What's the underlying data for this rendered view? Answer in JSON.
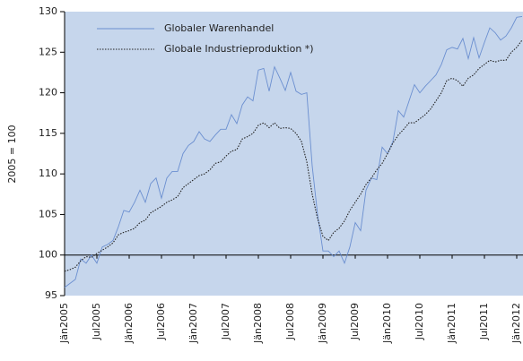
{
  "chart_data": {
    "type": "line",
    "y_label": "2005 = 100",
    "categories": [
      "Jän2005",
      null,
      null,
      null,
      null,
      null,
      "Jul2005",
      null,
      null,
      null,
      null,
      null,
      "Jän2006",
      null,
      null,
      null,
      null,
      null,
      "Jul2006",
      null,
      null,
      null,
      null,
      null,
      "Jän2007",
      null,
      null,
      null,
      null,
      null,
      "Jul2007",
      null,
      null,
      null,
      null,
      null,
      "Jän2008",
      null,
      null,
      null,
      null,
      null,
      "Jul2008",
      null,
      null,
      null,
      null,
      null,
      "Jän2009",
      null,
      null,
      null,
      null,
      null,
      "Jul2009",
      null,
      null,
      null,
      null,
      null,
      "Jän2010",
      null,
      null,
      null,
      null,
      null,
      "Jul2010",
      null,
      null,
      null,
      null,
      null,
      "Jän2011",
      null,
      null,
      null,
      null,
      null,
      "Jul2011",
      null,
      null,
      null,
      null,
      null,
      "Jän2012",
      null
    ],
    "series": [
      {
        "name": "Globaler Warenhandel",
        "color": "#6b8fd0",
        "style": "solid",
        "values": [
          96,
          96.5,
          97,
          99.5,
          99,
          100,
          99,
          101,
          101.3,
          101.8,
          103.5,
          105.5,
          105.3,
          106.5,
          108,
          106.5,
          108.8,
          109.5,
          107,
          109.5,
          110.3,
          110.3,
          112.5,
          113.5,
          114,
          115.2,
          114.3,
          114,
          114.8,
          115.5,
          115.5,
          117.3,
          116.2,
          118.5,
          119.5,
          119,
          122.8,
          123,
          120.2,
          123.2,
          121.8,
          120.3,
          122.5,
          120.2,
          119.8,
          120,
          111,
          105,
          100.5,
          100.5,
          99.8,
          100.5,
          99,
          101,
          104,
          103,
          108,
          109.5,
          109.3,
          113.3,
          112.5,
          114,
          117.8,
          117,
          119,
          121,
          120,
          120.8,
          121.5,
          122.2,
          123.5,
          125.3,
          125.6,
          125.4,
          126.7,
          124.2,
          126.8,
          124.3,
          126.2,
          128,
          127.4,
          126.5,
          127,
          128,
          129.3,
          129.4
        ]
      },
      {
        "name": "Globale Industrieproduktion *)",
        "color": "#222222",
        "style": "dotted",
        "values": [
          98,
          98.2,
          98.5,
          99.3,
          99.8,
          99.7,
          100.2,
          100.6,
          101,
          101.5,
          102.5,
          102.8,
          103,
          103.3,
          104,
          104.3,
          105.2,
          105.6,
          106,
          106.5,
          106.8,
          107.2,
          108.3,
          108.8,
          109.3,
          109.8,
          110,
          110.5,
          111.3,
          111.5,
          112.2,
          112.8,
          113,
          114.3,
          114.6,
          115,
          116,
          116.3,
          115.7,
          116.3,
          115.6,
          115.7,
          115.6,
          115,
          114,
          111.5,
          107.5,
          104.5,
          102.3,
          101.8,
          102.8,
          103.3,
          104.2,
          105.5,
          106.5,
          107.5,
          108.7,
          109.5,
          110.5,
          111.3,
          112.5,
          113.8,
          114.8,
          115.5,
          116.3,
          116.3,
          116.8,
          117.3,
          118,
          119,
          120,
          121.5,
          121.8,
          121.5,
          120.8,
          121.8,
          122.2,
          123,
          123.5,
          124,
          123.8,
          124,
          124,
          125,
          125.6,
          126.5
        ]
      }
    ],
    "ylim": [
      95,
      130
    ],
    "yticks": [
      95,
      100,
      105,
      110,
      115,
      120,
      125,
      130
    ],
    "baseline": 100,
    "plot_background": "#c6d6ec",
    "legend": "upper left",
    "grid": false
  }
}
